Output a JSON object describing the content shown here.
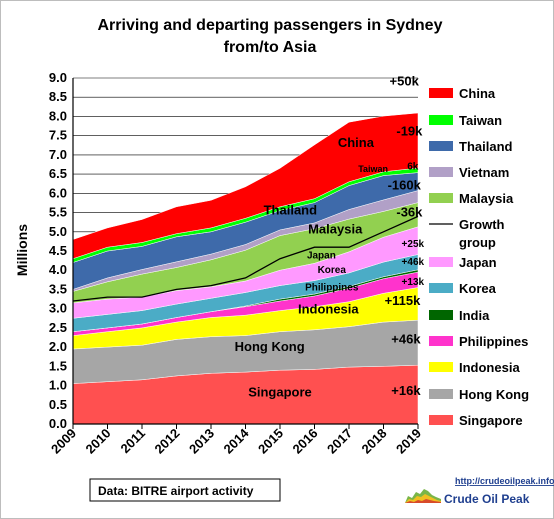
{
  "chart_data": {
    "type": "area",
    "stacked": true,
    "title": [
      "Arriving and departing passengers in Sydney",
      "from/to Asia"
    ],
    "ylabel": "Millions",
    "ylim": [
      0,
      9
    ],
    "yticks": [
      "0.0",
      "0.5",
      "1.0",
      "1.5",
      "2.0",
      "2.5",
      "3.0",
      "3.5",
      "4.0",
      "4.5",
      "5.0",
      "5.5",
      "6.0",
      "6.5",
      "7.0",
      "7.5",
      "8.0",
      "8.5",
      "9.0"
    ],
    "categories": [
      "2009",
      "2010",
      "2011",
      "2012",
      "2013",
      "2014",
      "2015",
      "2016",
      "2017",
      "2018",
      "2019"
    ],
    "grid": "horizontal",
    "legend_position": "right",
    "series": [
      {
        "name": "Singapore",
        "color": "#ff5050",
        "values": [
          1.05,
          1.1,
          1.15,
          1.25,
          1.32,
          1.35,
          1.4,
          1.42,
          1.48,
          1.5,
          1.53
        ]
      },
      {
        "name": "Hong Kong",
        "color": "#a6a6a6",
        "values": [
          0.9,
          0.9,
          0.9,
          0.95,
          0.95,
          0.95,
          1.0,
          1.03,
          1.05,
          1.15,
          1.17
        ]
      },
      {
        "name": "Indonesia",
        "color": "#ffff00",
        "values": [
          0.35,
          0.4,
          0.45,
          0.45,
          0.5,
          0.53,
          0.55,
          0.6,
          0.65,
          0.75,
          0.85
        ]
      },
      {
        "name": "Philippines",
        "color": "#ff33cc",
        "values": [
          0.1,
          0.1,
          0.1,
          0.12,
          0.15,
          0.22,
          0.25,
          0.28,
          0.35,
          0.38,
          0.4
        ]
      },
      {
        "name": "India",
        "color": "#006600",
        "values": [
          0.0,
          0.0,
          0.0,
          0.0,
          0.0,
          0.02,
          0.05,
          0.05,
          0.05,
          0.05,
          0.06
        ]
      },
      {
        "name": "Korea",
        "color": "#4bacc6",
        "values": [
          0.35,
          0.35,
          0.35,
          0.35,
          0.35,
          0.35,
          0.35,
          0.35,
          0.35,
          0.38,
          0.4
        ]
      },
      {
        "name": "Japan",
        "color": "#ff99ff",
        "values": [
          0.4,
          0.4,
          0.35,
          0.35,
          0.3,
          0.3,
          0.4,
          0.45,
          0.55,
          0.65,
          0.72
        ]
      },
      {
        "name": "Malaysia",
        "color": "#92d050",
        "values": [
          0.3,
          0.45,
          0.6,
          0.6,
          0.7,
          0.8,
          0.9,
          0.9,
          0.85,
          0.67,
          0.63
        ]
      },
      {
        "name": "Vietnam",
        "color": "#b1a0c7",
        "values": [
          0.05,
          0.1,
          0.12,
          0.15,
          0.15,
          0.15,
          0.15,
          0.15,
          0.25,
          0.3,
          0.31
        ]
      },
      {
        "name": "Thailand",
        "color": "#3e6aaa",
        "values": [
          0.7,
          0.7,
          0.6,
          0.65,
          0.58,
          0.58,
          0.5,
          0.53,
          0.62,
          0.63,
          0.47
        ]
      },
      {
        "name": "Taiwan",
        "color": "#00ff00",
        "values": [
          0.1,
          0.1,
          0.1,
          0.08,
          0.1,
          0.1,
          0.1,
          0.1,
          0.1,
          0.1,
          0.12
        ]
      },
      {
        "name": "China",
        "color": "#ff0000",
        "values": [
          0.5,
          0.5,
          0.6,
          0.7,
          0.72,
          0.82,
          1.0,
          1.4,
          1.55,
          1.45,
          1.43
        ]
      }
    ],
    "growth_group_line": {
      "name": "Growth group",
      "values": [
        3.2,
        3.3,
        3.3,
        3.5,
        3.6,
        3.8,
        4.3,
        4.6,
        4.6,
        5.0,
        5.4
      ]
    },
    "legend": [
      "China",
      "Taiwan",
      "Thailand",
      "Vietnam",
      "Malaysia",
      "Growth group",
      "Japan",
      "Korea",
      "India",
      "Philippines",
      "Indonesia",
      "Hong Kong",
      "Singapore"
    ],
    "area_labels": [
      {
        "text": "Singapore",
        "x": 2015.0,
        "y": 0.72,
        "size": 13
      },
      {
        "text": "Hong Kong",
        "x": 2014.7,
        "y": 1.9,
        "size": 13
      },
      {
        "text": "Indonesia",
        "x": 2016.4,
        "y": 2.88,
        "size": 13
      },
      {
        "text": "Philippines",
        "x": 2016.5,
        "y": 3.47,
        "size": 10
      },
      {
        "text": "Korea",
        "x": 2016.5,
        "y": 3.93,
        "size": 10
      },
      {
        "text": "Japan",
        "x": 2016.2,
        "y": 4.3,
        "size": 10
      },
      {
        "text": "Malaysia",
        "x": 2016.6,
        "y": 4.95,
        "size": 13
      },
      {
        "text": "Thailand",
        "x": 2015.3,
        "y": 5.45,
        "size": 13
      },
      {
        "text": "Taiwan",
        "x": 2017.7,
        "y": 6.55,
        "size": 9
      },
      {
        "text": "China",
        "x": 2017.2,
        "y": 7.2,
        "size": 13
      }
    ],
    "change_labels": [
      {
        "text": "+50k",
        "x": 2018.6,
        "y": 8.8
      },
      {
        "text": "-19k",
        "x": 2018.75,
        "y": 7.5
      },
      {
        "text": "6k",
        "x": 2018.85,
        "y": 6.62,
        "size": 10
      },
      {
        "text": "-160k",
        "x": 2018.6,
        "y": 6.1
      },
      {
        "text": "-36k",
        "x": 2018.75,
        "y": 5.4
      },
      {
        "text": "+25k",
        "x": 2018.85,
        "y": 4.6,
        "size": 10
      },
      {
        "text": "+46k",
        "x": 2018.85,
        "y": 4.13,
        "size": 10
      },
      {
        "text": "+13k",
        "x": 2018.85,
        "y": 3.62,
        "size": 10
      },
      {
        "text": "+115k",
        "x": 2018.55,
        "y": 3.1
      },
      {
        "text": "+46k",
        "x": 2018.65,
        "y": 2.1
      },
      {
        "text": "+16k",
        "x": 2018.65,
        "y": 0.75
      }
    ],
    "source": "Data: BITRE airport activity"
  },
  "logo": {
    "url": "http://crudeoilpeak.info",
    "name": "Crude Oil Peak"
  }
}
